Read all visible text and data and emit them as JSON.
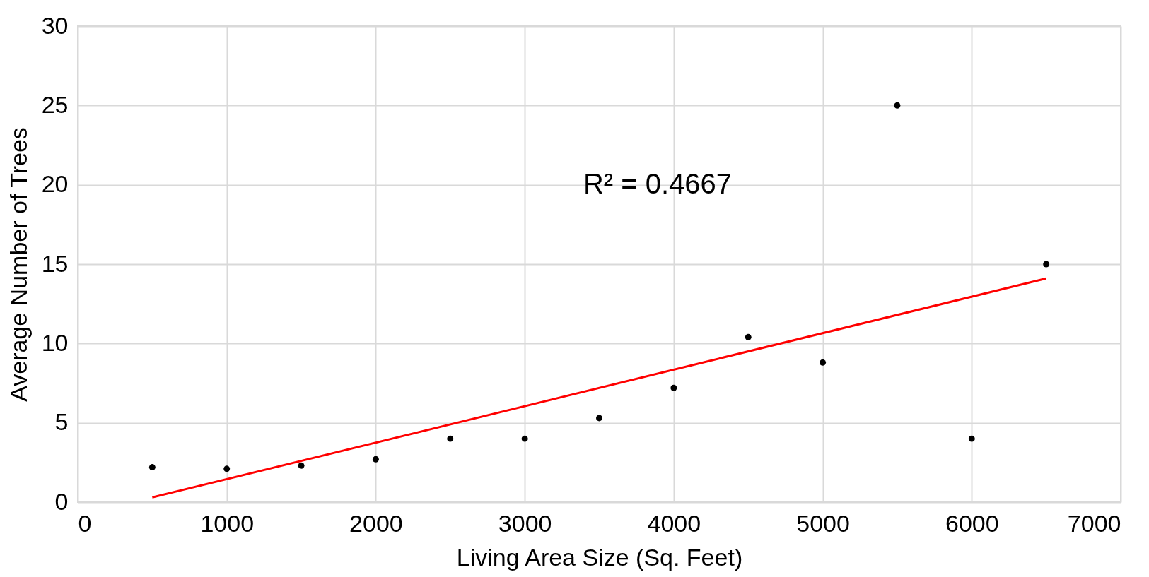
{
  "chart_data": {
    "type": "scatter",
    "xlabel": "Living Area Size (Sq. Feet)",
    "ylabel": "Average Number of Trees",
    "annotations": [
      "R² = 0.4667"
    ],
    "series": [
      {
        "color": "#000000",
        "marker": "circle",
        "x": [
          500,
          1000,
          1500,
          2000,
          2500,
          3000,
          3500,
          4000,
          4500,
          5000,
          5500,
          6000,
          6500
        ],
        "values": [
          2.2,
          2.1,
          2.3,
          2.7,
          4.0,
          4.0,
          5.3,
          7.2,
          10.4,
          8.8,
          25.0,
          4.0,
          15.0
        ]
      },
      {
        "type": "line",
        "color": "#ff0000",
        "line_style": "solid",
        "x": [
          500,
          6500
        ],
        "values": [
          0.3,
          14.1
        ]
      }
    ],
    "xlim": [
      0,
      7000
    ],
    "xticks": [
      0,
      1000,
      2000,
      3000,
      4000,
      5000,
      6000,
      7000
    ],
    "ylim": [
      0,
      30
    ],
    "yticks": [
      0,
      5,
      10,
      15,
      20,
      25,
      30
    ],
    "grid": true
  }
}
